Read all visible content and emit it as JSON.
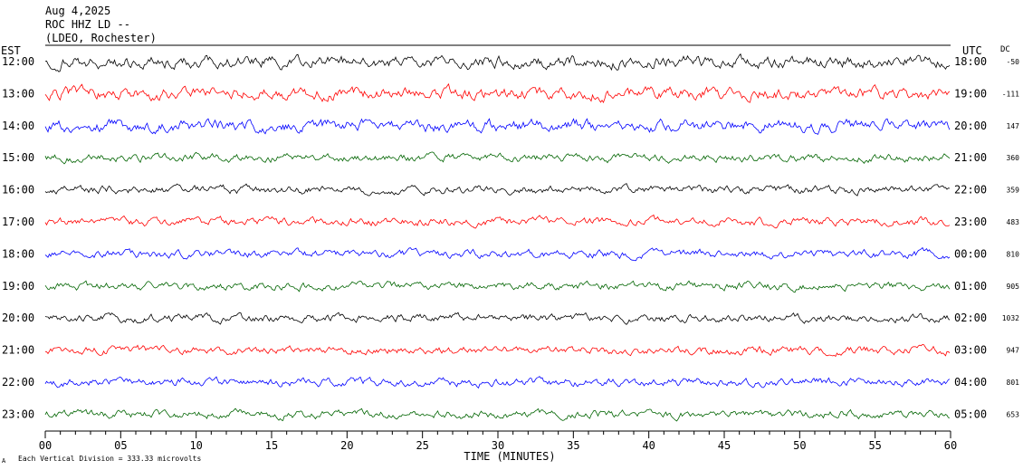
{
  "header": {
    "date": "Aug 4,2025",
    "station": "ROC HHZ LD --",
    "location": "(LDEO, Rochester)"
  },
  "axes": {
    "left_tz": "EST",
    "right_tz": "UTC",
    "dc_label": "DC",
    "xlabel": "TIME (MINUTES)",
    "footer": "Each Vertical Division =  333.33 microvolts",
    "corner_mark": "A"
  },
  "chart_data": {
    "type": "line",
    "title": "",
    "xlabel": "TIME (MINUTES)",
    "xlim": [
      0,
      60
    ],
    "x_ticks": [
      "00",
      "05",
      "10",
      "15",
      "20",
      "25",
      "30",
      "35",
      "40",
      "45",
      "50",
      "55",
      "60"
    ],
    "colors": {
      "black": "#000000",
      "red": "#ff0000",
      "blue": "#0000ff",
      "green": "#006400"
    },
    "rows": [
      {
        "est": "12:00",
        "utc": "18:00",
        "dc": "-50",
        "color": "black"
      },
      {
        "est": "13:00",
        "utc": "19:00",
        "dc": "-111",
        "color": "red"
      },
      {
        "est": "14:00",
        "utc": "20:00",
        "dc": "147",
        "color": "blue"
      },
      {
        "est": "15:00",
        "utc": "21:00",
        "dc": "360",
        "color": "green"
      },
      {
        "est": "16:00",
        "utc": "22:00",
        "dc": "359",
        "color": "black"
      },
      {
        "est": "17:00",
        "utc": "23:00",
        "dc": "483",
        "color": "red"
      },
      {
        "est": "18:00",
        "utc": "00:00",
        "dc": "810",
        "color": "blue"
      },
      {
        "est": "19:00",
        "utc": "01:00",
        "dc": "905",
        "color": "green"
      },
      {
        "est": "20:00",
        "utc": "02:00",
        "dc": "1032",
        "color": "black"
      },
      {
        "est": "21:00",
        "utc": "03:00",
        "dc": "947",
        "color": "red"
      },
      {
        "est": "22:00",
        "utc": "04:00",
        "dc": "801",
        "color": "blue"
      },
      {
        "est": "23:00",
        "utc": "05:00",
        "dc": "653",
        "color": "green"
      }
    ]
  }
}
